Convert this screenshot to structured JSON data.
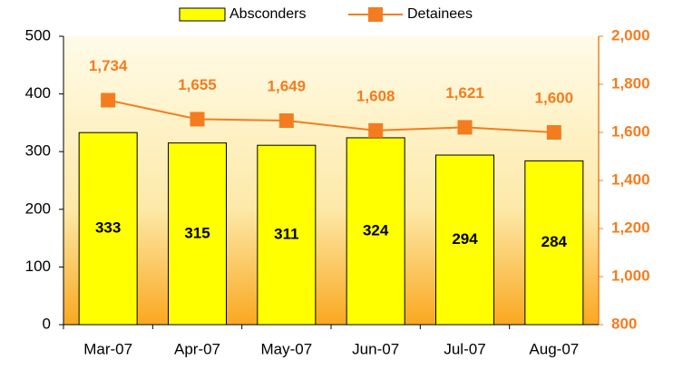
{
  "chart_data": {
    "type": "bar_line",
    "categories": [
      "Mar-07",
      "Apr-07",
      "May-07",
      "Jun-07",
      "Jul-07",
      "Aug-07"
    ],
    "series": [
      {
        "name": "Absconders",
        "color": "#ffff00",
        "values": [
          333,
          315,
          311,
          324,
          294,
          284
        ]
      },
      {
        "name": "Detainees",
        "color": "#f47c20",
        "axis": "y2",
        "values": [
          1734,
          1655,
          1649,
          1608,
          1621,
          1600
        ],
        "value_labels": [
          "1,734",
          "1,655",
          "1,649",
          "1,608",
          "1,621",
          "1,600"
        ]
      }
    ],
    "ylim": [
      0,
      500
    ],
    "yticks": [
      0,
      100,
      200,
      300,
      400,
      500
    ],
    "y2lim": [
      800,
      2000
    ],
    "y2ticks": [
      800,
      {
        "value": 1000,
        "label": "1,000"
      },
      {
        "value": 1200,
        "label": "1,200"
      },
      {
        "value": 1400,
        "label": "1,400"
      },
      {
        "value": 1600,
        "label": "1,600"
      },
      {
        "value": 1800,
        "label": "1,800"
      },
      {
        "value": 2000,
        "label": "2,000"
      }
    ],
    "legend": "top"
  }
}
